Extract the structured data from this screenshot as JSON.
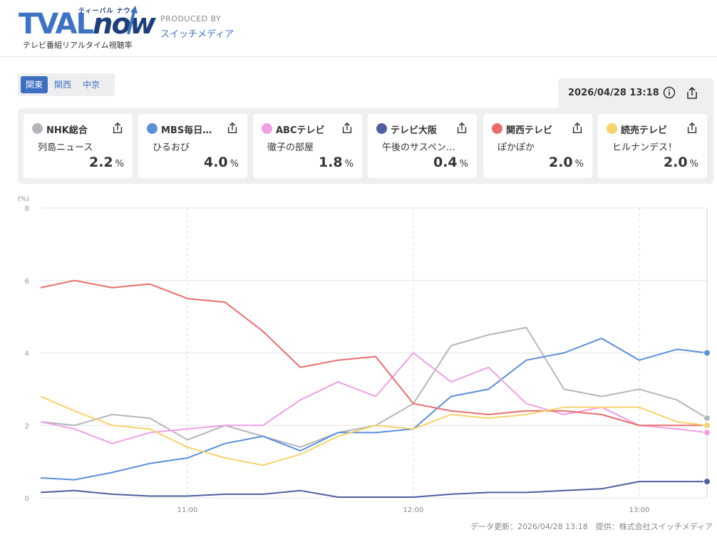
{
  "header": {
    "logo_main_1": "TVAL",
    "logo_main_2": "now",
    "logo_kana": "ティーバル ナウ",
    "logo_sub": "テレビ番組リアルタイム視聴率",
    "produced_by": "PRODUCED BY",
    "producer": "スイッチメディア"
  },
  "regions": [
    {
      "label": "関東",
      "active": true
    },
    {
      "label": "関西",
      "active": false
    },
    {
      "label": "中京",
      "active": false
    }
  ],
  "timestamp": "2026/04/28 13:18",
  "colors": {
    "nhk": "#b3b6bb",
    "mbs": "#5b8fd9",
    "abc": "#ef9fe3",
    "tvo": "#4d5f9e",
    "ktv": "#e86e6e",
    "ytv": "#f7d36c"
  },
  "stations": [
    {
      "station": "NHK総合",
      "program": "列島ニュース",
      "rating": "2.2",
      "unit": "%",
      "color": "#b3b6bb"
    },
    {
      "station": "MBS毎日…",
      "program": "ひるおび",
      "rating": "4.0",
      "unit": "%",
      "color": "#5b8fd9"
    },
    {
      "station": "ABCテレビ",
      "program": "徹子の部屋",
      "rating": "1.8",
      "unit": "%",
      "color": "#ef9fe3"
    },
    {
      "station": "テレビ大阪",
      "program": "午後のサスペン…",
      "rating": "0.4",
      "unit": "%",
      "color": "#4d5f9e"
    },
    {
      "station": "関西テレビ",
      "program": "ぽかぽか",
      "rating": "2.0",
      "unit": "%",
      "color": "#e86e6e"
    },
    {
      "station": "読売テレビ",
      "program": "ヒルナンデス！",
      "rating": "2.0",
      "unit": "%",
      "color": "#f7d36c"
    }
  ],
  "chart_data": {
    "type": "line",
    "ylabel": "(%)",
    "ylim": [
      0,
      8
    ],
    "yticks": [
      "0",
      "2",
      "4",
      "6",
      "8"
    ],
    "xlim": [
      "10:21",
      "13:18"
    ],
    "xticks": [
      "11:00",
      "12:00",
      "13:00"
    ],
    "grid": true,
    "x": [
      "10:21",
      "10:30",
      "10:40",
      "10:50",
      "11:00",
      "11:10",
      "11:20",
      "11:30",
      "11:40",
      "11:50",
      "12:00",
      "12:10",
      "12:20",
      "12:30",
      "12:40",
      "12:50",
      "13:00",
      "13:10",
      "13:18"
    ],
    "series": [
      {
        "name": "NHK総合",
        "color": "#b3b6bb",
        "values": [
          2.1,
          2.0,
          2.3,
          2.2,
          1.6,
          2.0,
          1.7,
          1.4,
          1.8,
          2.0,
          2.6,
          4.2,
          4.5,
          4.7,
          3.0,
          2.8,
          3.0,
          2.7,
          2.2
        ]
      },
      {
        "name": "MBS毎日放送",
        "color": "#5b8fd9",
        "values": [
          0.55,
          0.5,
          0.7,
          0.95,
          1.1,
          1.5,
          1.7,
          1.3,
          1.8,
          1.8,
          1.9,
          2.8,
          3.0,
          3.8,
          4.0,
          4.4,
          3.8,
          4.1,
          4.0
        ]
      },
      {
        "name": "ABCテレビ",
        "color": "#ef9fe3",
        "values": [
          2.1,
          1.9,
          1.5,
          1.8,
          1.9,
          2.0,
          2.0,
          2.7,
          3.2,
          2.8,
          4.0,
          3.2,
          3.6,
          2.6,
          2.3,
          2.5,
          2.0,
          1.9,
          1.8
        ]
      },
      {
        "name": "テレビ大阪",
        "color": "#4d5f9e",
        "values": [
          0.15,
          0.2,
          0.1,
          0.05,
          0.05,
          0.1,
          0.1,
          0.2,
          0.02,
          0.02,
          0.02,
          0.1,
          0.15,
          0.15,
          0.2,
          0.25,
          0.45,
          0.45,
          0.45
        ]
      },
      {
        "name": "関西テレビ",
        "color": "#e86e6e",
        "values": [
          5.8,
          6.0,
          5.8,
          5.9,
          5.5,
          5.4,
          4.6,
          3.6,
          3.8,
          3.9,
          2.6,
          2.4,
          2.3,
          2.4,
          2.4,
          2.3,
          2.0,
          2.0,
          2.0
        ]
      },
      {
        "name": "読売テレビ",
        "color": "#f7d36c",
        "values": [
          2.8,
          2.4,
          2.0,
          1.9,
          1.4,
          1.1,
          0.9,
          1.2,
          1.7,
          2.0,
          1.9,
          2.3,
          2.2,
          2.3,
          2.5,
          2.5,
          2.5,
          2.1,
          2.0
        ]
      }
    ]
  },
  "footer": "データ更新：2026/04/28 13:18　提供：株式会社スイッチメディア"
}
